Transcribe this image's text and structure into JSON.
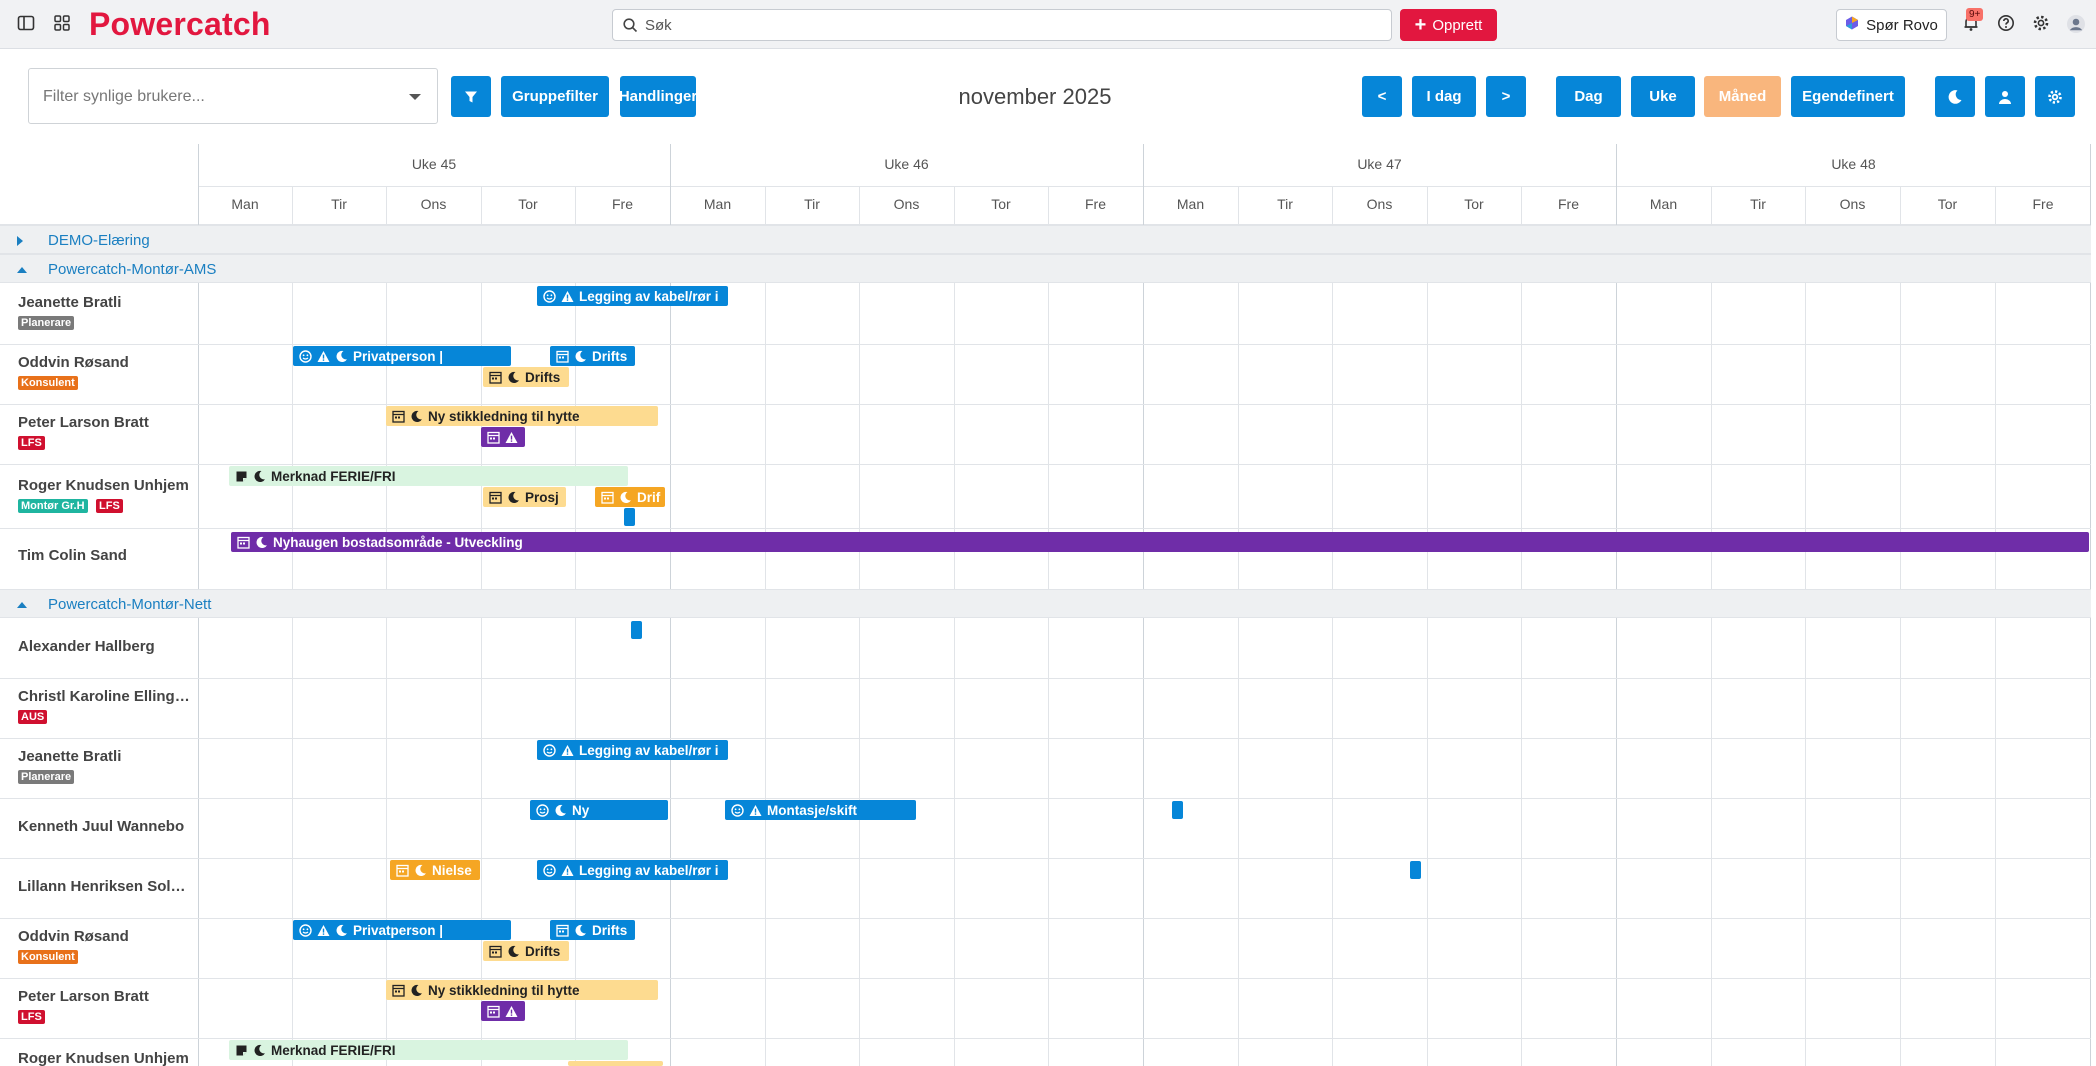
{
  "app": {
    "name": "Powercatch"
  },
  "topbar": {
    "search_placeholder": "Søk",
    "create_label": "Opprett",
    "rovo_label": "Spør Rovo",
    "notification_badge": "9+"
  },
  "toolbar": {
    "filter_placeholder": "Filter synlige brukere...",
    "group_filter_label": "Gruppefilter",
    "actions_label": "Handlinger",
    "period_title": "november 2025",
    "prev_label": "<",
    "today_label": "I dag",
    "next_label": ">",
    "view_day": "Dag",
    "view_week": "Uke",
    "view_month": "Måned",
    "view_custom": "Egendefinert"
  },
  "calendar": {
    "weeks": [
      "Uke 45",
      "Uke 46",
      "Uke 47",
      "Uke 48"
    ],
    "days": [
      "Man",
      "Tir",
      "Ons",
      "Tor",
      "Fre"
    ],
    "groups": [
      {
        "label": "DEMO-Elæring",
        "expanded": false
      },
      {
        "label": "Powercatch-Montør-AMS",
        "expanded": true
      },
      {
        "label": "Powercatch-Montør-Nett",
        "expanded": true
      }
    ],
    "rows": [
      {
        "name": "Jeanette Bratli",
        "tags": [
          "Planerare"
        ]
      },
      {
        "name": "Oddvin Røsand",
        "tags": [
          "Konsulent"
        ]
      },
      {
        "name": "Peter Larson Bratt",
        "tags": [
          "LFS"
        ]
      },
      {
        "name": "Roger Knudsen Unhjem",
        "tags": [
          "Montør Gr.H",
          "LFS"
        ]
      },
      {
        "name": "Tim Colin Sand",
        "tags": []
      },
      {
        "name": "Alexander Hallberg",
        "tags": []
      },
      {
        "name": "Christl Karoline Ellingsen",
        "tags": [
          "AUS"
        ]
      },
      {
        "name": "Jeanette Bratli",
        "tags": [
          "Planerare"
        ]
      },
      {
        "name": "Kenneth Juul Wannebo",
        "tags": []
      },
      {
        "name": "Lillann Henriksen Solberg",
        "tags": []
      },
      {
        "name": "Oddvin Røsand",
        "tags": [
          "Konsulent"
        ]
      },
      {
        "name": "Peter Larson Bratt",
        "tags": [
          "LFS"
        ]
      },
      {
        "name": "Roger Knudsen Unhjem",
        "tags": []
      }
    ],
    "events": {
      "e1": "Legging av kabel/rør i",
      "e2": "Privatperson |",
      "e3": "Drifts",
      "e4": "Drifts",
      "e5": "Ny stikkledning til hytte",
      "e6": "Merknad FERIE/FRI",
      "e7": "Prosj",
      "e8": "Drif",
      "e9": "Nyhaugen bostadsområde - Utveckling",
      "e10": "Legging av kabel/rør i",
      "e11": "Ny",
      "e12": "Montasje/skift",
      "e13": "Nielse",
      "e14": "Legging av kabel/rør i",
      "e15": "Privatperson |",
      "e16": "Drifts",
      "e17": "Drifts",
      "e18": "Ny stikkledning til hytte",
      "e19": "Merknad FERIE/FRI"
    }
  },
  "colors": {
    "brand": "#e2173f",
    "primary": "#0686d8",
    "active_view": "#f9b67d",
    "event_yellow": "#fddb90",
    "event_orange": "#f5a623",
    "event_purple": "#6f2da8",
    "event_green": "#d9f4e0",
    "tag_planerare": "#7a7a7a",
    "tag_konsulent": "#e8711a",
    "tag_lfs": "#d0102f",
    "tag_montor": "#1fb5a0",
    "tag_aus": "#d0102f"
  }
}
